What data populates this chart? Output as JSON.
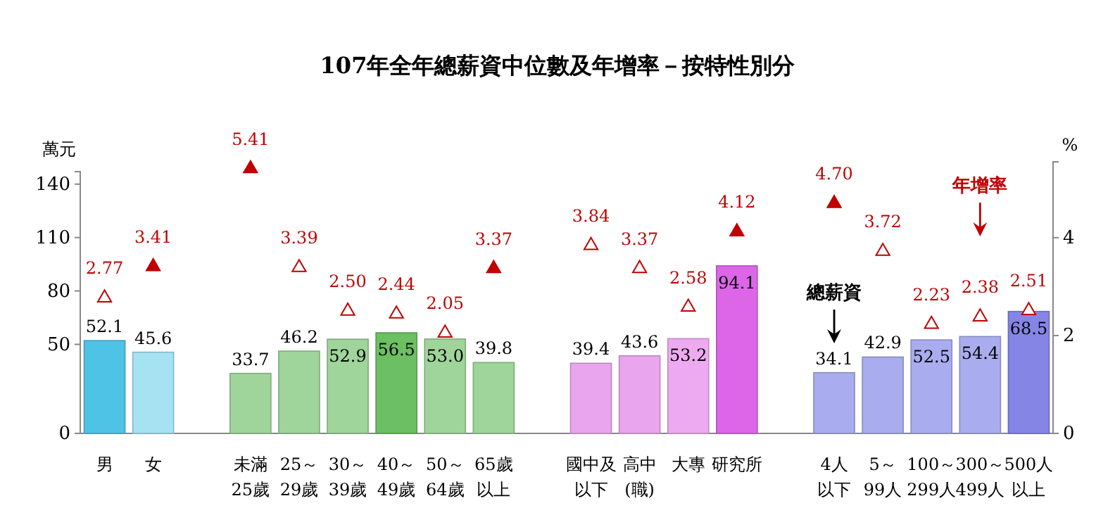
{
  "chart_data": {
    "type": "bar",
    "title": "107年全年總薪資中位數及年增率－按特性別分",
    "ylabel": "萬元",
    "y2label": "%",
    "categories": [
      "男",
      "女",
      null,
      "未滿25歲",
      "25～29歲",
      "30～39歲",
      "40～49歲",
      "50～64歲",
      "65歲以上",
      null,
      "國中及以下",
      "高中(職)",
      "大專",
      "研究所",
      null,
      "4人以下",
      "5～99人",
      "100～299人",
      "300～499人",
      "500人以上"
    ],
    "series": [
      {
        "values": [
          52.1,
          45.6,
          null,
          33.7,
          46.2,
          52.9,
          56.5,
          53.0,
          39.8,
          null,
          39.4,
          43.6,
          53.2,
          94.1,
          null,
          34.1,
          42.9,
          52.5,
          54.4,
          68.5
        ],
        "value_labels": [
          "52.1",
          "45.6",
          null,
          "33.7",
          "46.2",
          "52.9",
          "56.5",
          "53.0",
          "39.8",
          null,
          "39.4",
          "43.6",
          "53.2",
          "94.1",
          null,
          "34.1",
          "42.9",
          "52.5",
          "54.4",
          "68.5"
        ],
        "colors": [
          "#4fc3e6",
          "#a6e3f2",
          null,
          "#9fd49a",
          "#9fd49a",
          "#9fd49a",
          "#6cbf62",
          "#9fd49a",
          "#9fd49a",
          null,
          "#e9a6ee",
          "#e9a6ee",
          "#eeaaf0",
          "#dd66e8",
          null,
          "#a9acee",
          "#a9acee",
          "#a9acee",
          "#a9acee",
          "#8585e6"
        ]
      },
      {
        "type": "scatter",
        "axis": "y2",
        "color": "#c00000",
        "marker": "triangle",
        "values": [
          null,
          3.41,
          null,
          5.41,
          null,
          null,
          null,
          null,
          3.37,
          null,
          null,
          null,
          null,
          4.12,
          null,
          4.7,
          null,
          null,
          null,
          null
        ],
        "value_labels": [
          null,
          "3.41",
          null,
          "5.41",
          null,
          null,
          null,
          null,
          "3.37",
          null,
          null,
          null,
          null,
          "4.12",
          null,
          "4.70",
          null,
          null,
          null,
          null
        ]
      },
      {
        "type": "scatter",
        "axis": "y2",
        "color": "#c00000",
        "marker": "triangle",
        "values": [
          2.77,
          null,
          null,
          null,
          3.39,
          2.5,
          2.44,
          2.05,
          null,
          null,
          3.84,
          3.37,
          2.58,
          null,
          null,
          null,
          3.72,
          2.23,
          2.38,
          2.51
        ],
        "value_labels": [
          "2.77",
          null,
          null,
          null,
          "3.39",
          "2.50",
          "2.44",
          "2.05",
          null,
          null,
          "3.84",
          "3.37",
          "2.58",
          null,
          null,
          null,
          "3.72",
          "2.23",
          "2.38",
          "2.51"
        ]
      }
    ],
    "ylim": [
      0,
      147
    ],
    "yticks": [
      0,
      50,
      80,
      110,
      140
    ],
    "y2lim": [
      0,
      5.55
    ],
    "y2ticks": [
      0,
      2,
      4
    ],
    "annotations": [
      "總薪資",
      "年增率"
    ]
  }
}
